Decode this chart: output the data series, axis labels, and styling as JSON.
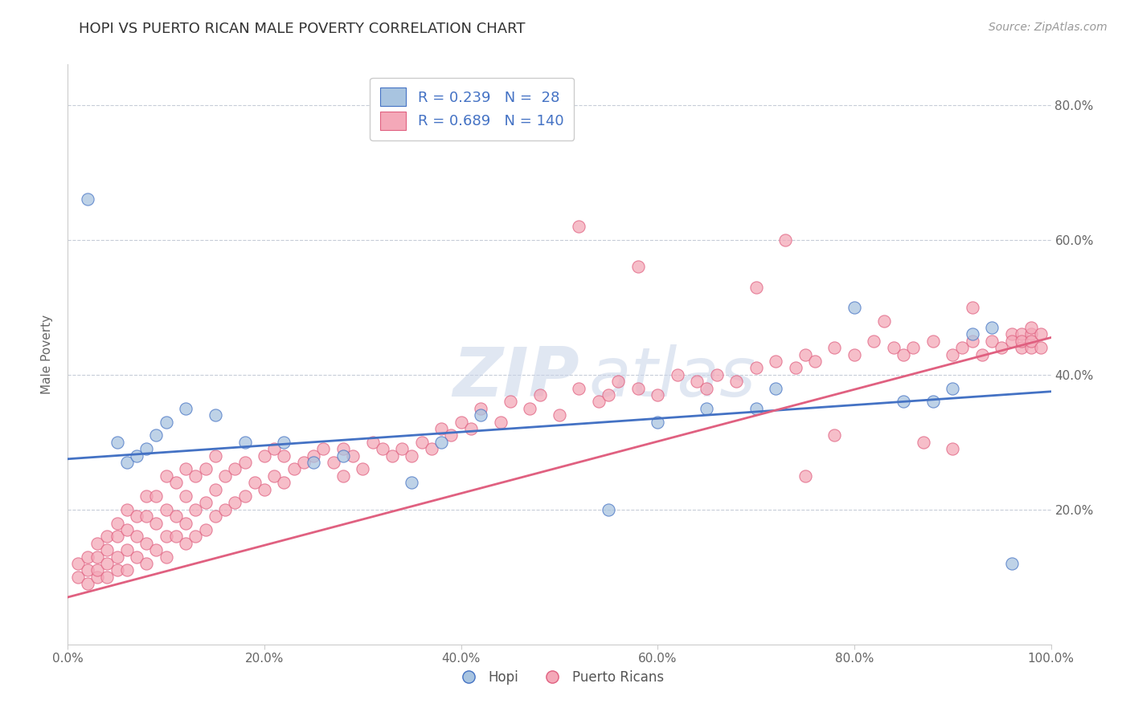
{
  "title": "HOPI VS PUERTO RICAN MALE POVERTY CORRELATION CHART",
  "source": "Source: ZipAtlas.com",
  "ylabel": "Male Poverty",
  "xlim": [
    0.0,
    1.0
  ],
  "ylim": [
    0.0,
    0.86
  ],
  "hopi_color": "#a8c4e0",
  "puerto_rican_color": "#f4a8b8",
  "hopi_line_color": "#4472c4",
  "puerto_rican_line_color": "#e06080",
  "legend_r_color": "#4472c4",
  "hopi_R": 0.239,
  "hopi_N": 28,
  "puerto_rican_R": 0.689,
  "puerto_rican_N": 140,
  "watermark_zip": "ZIP",
  "watermark_atlas": "atlas",
  "background_color": "#ffffff",
  "grid_color": "#b0b8c8",
  "title_color": "#333333",
  "axis_label_color": "#666666",
  "hopi_x": [
    0.02,
    0.05,
    0.06,
    0.07,
    0.08,
    0.09,
    0.1,
    0.12,
    0.15,
    0.18,
    0.22,
    0.25,
    0.28,
    0.35,
    0.38,
    0.42,
    0.55,
    0.6,
    0.65,
    0.7,
    0.72,
    0.8,
    0.85,
    0.88,
    0.9,
    0.92,
    0.94,
    0.96
  ],
  "hopi_y": [
    0.66,
    0.3,
    0.27,
    0.28,
    0.29,
    0.31,
    0.33,
    0.35,
    0.34,
    0.3,
    0.3,
    0.27,
    0.28,
    0.24,
    0.3,
    0.34,
    0.2,
    0.33,
    0.35,
    0.35,
    0.38,
    0.5,
    0.36,
    0.36,
    0.38,
    0.46,
    0.47,
    0.12
  ],
  "hopi_line_y0": 0.275,
  "hopi_line_y1": 0.375,
  "pr_line_y0": 0.07,
  "pr_line_y1": 0.455,
  "pr_x": [
    0.01,
    0.01,
    0.02,
    0.02,
    0.02,
    0.03,
    0.03,
    0.03,
    0.03,
    0.04,
    0.04,
    0.04,
    0.04,
    0.05,
    0.05,
    0.05,
    0.05,
    0.06,
    0.06,
    0.06,
    0.06,
    0.07,
    0.07,
    0.07,
    0.08,
    0.08,
    0.08,
    0.08,
    0.09,
    0.09,
    0.09,
    0.1,
    0.1,
    0.1,
    0.1,
    0.11,
    0.11,
    0.11,
    0.12,
    0.12,
    0.12,
    0.12,
    0.13,
    0.13,
    0.13,
    0.14,
    0.14,
    0.14,
    0.15,
    0.15,
    0.15,
    0.16,
    0.16,
    0.17,
    0.17,
    0.18,
    0.18,
    0.19,
    0.2,
    0.2,
    0.21,
    0.21,
    0.22,
    0.22,
    0.23,
    0.24,
    0.25,
    0.26,
    0.27,
    0.28,
    0.28,
    0.29,
    0.3,
    0.31,
    0.32,
    0.33,
    0.34,
    0.35,
    0.36,
    0.37,
    0.38,
    0.39,
    0.4,
    0.41,
    0.42,
    0.44,
    0.45,
    0.47,
    0.48,
    0.5,
    0.52,
    0.54,
    0.55,
    0.56,
    0.58,
    0.6,
    0.62,
    0.64,
    0.65,
    0.66,
    0.68,
    0.7,
    0.72,
    0.74,
    0.75,
    0.76,
    0.78,
    0.8,
    0.82,
    0.84,
    0.85,
    0.86,
    0.88,
    0.9,
    0.91,
    0.92,
    0.93,
    0.94,
    0.95,
    0.96,
    0.96,
    0.97,
    0.97,
    0.97,
    0.98,
    0.98,
    0.98,
    0.98,
    0.99,
    0.99,
    0.52,
    0.58,
    0.7,
    0.73,
    0.75,
    0.78,
    0.83,
    0.87,
    0.9,
    0.92
  ],
  "pr_y": [
    0.1,
    0.12,
    0.09,
    0.11,
    0.13,
    0.1,
    0.11,
    0.13,
    0.15,
    0.1,
    0.12,
    0.14,
    0.16,
    0.11,
    0.13,
    0.16,
    0.18,
    0.11,
    0.14,
    0.17,
    0.2,
    0.13,
    0.16,
    0.19,
    0.12,
    0.15,
    0.19,
    0.22,
    0.14,
    0.18,
    0.22,
    0.13,
    0.16,
    0.2,
    0.25,
    0.16,
    0.19,
    0.24,
    0.15,
    0.18,
    0.22,
    0.26,
    0.16,
    0.2,
    0.25,
    0.17,
    0.21,
    0.26,
    0.19,
    0.23,
    0.28,
    0.2,
    0.25,
    0.21,
    0.26,
    0.22,
    0.27,
    0.24,
    0.23,
    0.28,
    0.25,
    0.29,
    0.24,
    0.28,
    0.26,
    0.27,
    0.28,
    0.29,
    0.27,
    0.25,
    0.29,
    0.28,
    0.26,
    0.3,
    0.29,
    0.28,
    0.29,
    0.28,
    0.3,
    0.29,
    0.32,
    0.31,
    0.33,
    0.32,
    0.35,
    0.33,
    0.36,
    0.35,
    0.37,
    0.34,
    0.38,
    0.36,
    0.37,
    0.39,
    0.38,
    0.37,
    0.4,
    0.39,
    0.38,
    0.4,
    0.39,
    0.41,
    0.42,
    0.41,
    0.43,
    0.42,
    0.44,
    0.43,
    0.45,
    0.44,
    0.43,
    0.44,
    0.45,
    0.43,
    0.44,
    0.45,
    0.43,
    0.45,
    0.44,
    0.46,
    0.45,
    0.44,
    0.46,
    0.45,
    0.44,
    0.46,
    0.45,
    0.47,
    0.44,
    0.46,
    0.62,
    0.56,
    0.53,
    0.6,
    0.25,
    0.31,
    0.48,
    0.3,
    0.29,
    0.5
  ]
}
